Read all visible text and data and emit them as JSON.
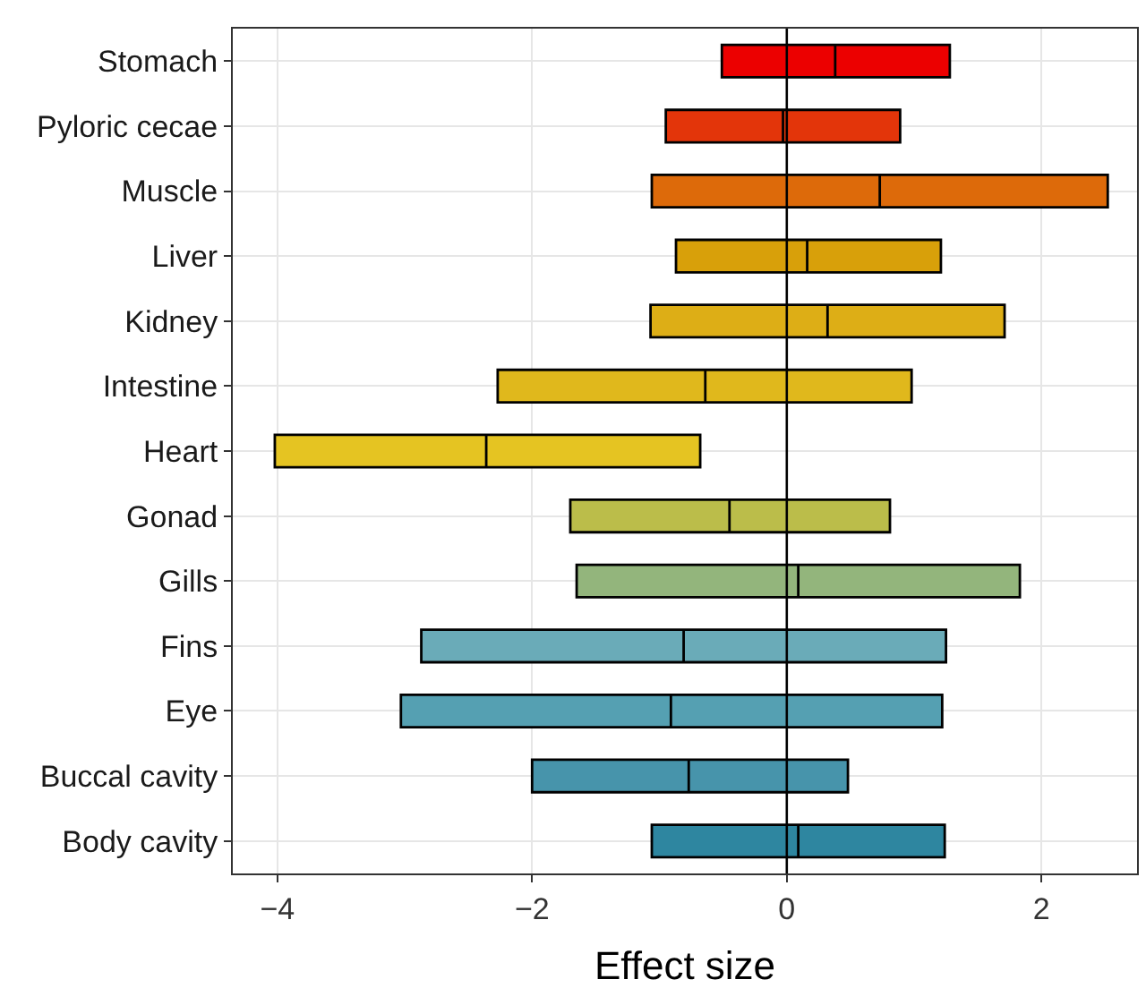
{
  "chart_data": {
    "type": "box",
    "orientation": "horizontal",
    "xlabel": "Effect size",
    "categories": [
      "Stomach",
      "Pyloric cecae",
      "Muscle",
      "Liver",
      "Kidney",
      "Intestine",
      "Heart",
      "Gonad",
      "Gills",
      "Fins",
      "Eye",
      "Buccal cavity",
      "Body cavity"
    ],
    "boxes": [
      {
        "low": -0.51,
        "q1": -0.51,
        "median": 0.38,
        "q3": 1.28,
        "high": 1.28
      },
      {
        "low": -0.95,
        "q1": -0.95,
        "median": -0.03,
        "q3": 0.89,
        "high": 0.89
      },
      {
        "low": -1.06,
        "q1": -1.06,
        "median": 0.73,
        "q3": 2.52,
        "high": 2.52
      },
      {
        "low": -0.87,
        "q1": -0.87,
        "median": 0.16,
        "q3": 1.21,
        "high": 1.21
      },
      {
        "low": -1.07,
        "q1": -1.07,
        "median": 0.32,
        "q3": 1.71,
        "high": 1.71
      },
      {
        "low": -2.27,
        "q1": -2.27,
        "median": -0.64,
        "q3": 0.98,
        "high": 0.98
      },
      {
        "low": -4.02,
        "q1": -4.02,
        "median": -2.36,
        "q3": -0.68,
        "high": -0.68
      },
      {
        "low": -1.7,
        "q1": -1.7,
        "median": -0.45,
        "q3": 0.81,
        "high": 0.81
      },
      {
        "low": -1.65,
        "q1": -1.65,
        "median": 0.09,
        "q3": 1.83,
        "high": 1.83
      },
      {
        "low": -2.87,
        "q1": -2.87,
        "median": -0.81,
        "q3": 1.25,
        "high": 1.25
      },
      {
        "low": -3.03,
        "q1": -3.03,
        "median": -0.91,
        "q3": 1.22,
        "high": 1.22
      },
      {
        "low": -2.0,
        "q1": -2.0,
        "median": -0.77,
        "q3": 0.48,
        "high": 0.48
      },
      {
        "low": -1.06,
        "q1": -1.06,
        "median": 0.09,
        "q3": 1.24,
        "high": 1.24
      }
    ],
    "colors": [
      "#ec0000",
      "#e3350a",
      "#dd6a0a",
      "#d8a00a",
      "#ddae16",
      "#e0b81c",
      "#e5c422",
      "#bbbd4a",
      "#93b57c",
      "#6aabb8",
      "#55a0b2",
      "#4794ab",
      "#2e86a0"
    ],
    "xlim": [
      -4.35,
      2.75
    ],
    "xticks": [
      {
        "value": -4,
        "label": "−4"
      },
      {
        "value": -2,
        "label": "−2"
      },
      0,
      2
    ],
    "ref_lines": [
      {
        "axis": "x",
        "value": 0,
        "color": "#000000"
      }
    ],
    "grid": true
  }
}
